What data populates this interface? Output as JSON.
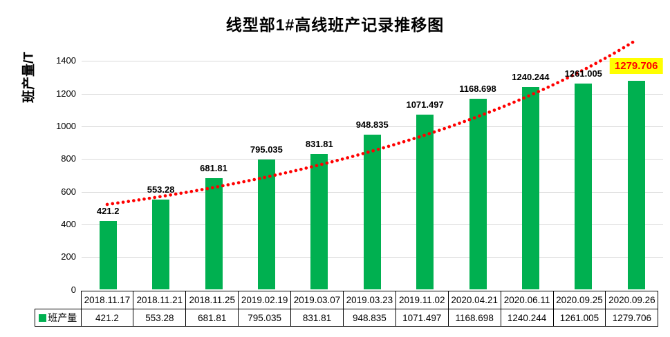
{
  "title": "线型部1#高线班产记录推移图",
  "y_axis": {
    "label": "班产量/T",
    "ticks": [
      0,
      200,
      400,
      600,
      800,
      1000,
      1200,
      1400
    ]
  },
  "legend": {
    "series_label": "班产量"
  },
  "colors": {
    "bar": "#00B050",
    "trend": "#FF0000",
    "gridline": "#D9D9D9",
    "highlight_bg": "#FFFF00",
    "highlight_text": "#FF0000",
    "label_text": "#000000"
  },
  "chart_data": {
    "type": "bar",
    "title": "线型部1#高线班产记录推移图",
    "ylabel": "班产量/T",
    "ylim": [
      0,
      1500
    ],
    "grid": true,
    "legend_position": "table-left",
    "categories": [
      "2018.11.17",
      "2018.11.21",
      "2018.11.25",
      "2019.02.19",
      "2019.03.07",
      "2019.03.23",
      "2019.11.02",
      "2020.04.21",
      "2020.06.11",
      "2020.09.25",
      "2020.09.26"
    ],
    "series": [
      {
        "name": "班产量",
        "values": [
          421.2,
          553.28,
          681.81,
          795.035,
          831.81,
          948.835,
          1071.497,
          1168.698,
          1240.244,
          1261.005,
          1279.706
        ]
      }
    ],
    "value_labels": [
      "421.2",
      "553.28",
      "681.81",
      "795.035",
      "831.81",
      "948.835",
      "1071.497",
      "1168.698",
      "1240.244",
      "1261.005",
      "1279.706"
    ],
    "highlight_index": 10,
    "trendline": {
      "style": "dotted",
      "color": "#FF0000",
      "shape": "exponential-rising"
    },
    "data_table": {
      "row_header": "班产量",
      "columns": [
        "2018.11.17",
        "2018.11.21",
        "2018.11.25",
        "2019.02.19",
        "2019.03.07",
        "2019.03.23",
        "2019.11.02",
        "2020.04.21",
        "2020.06.11",
        "2020.09.25",
        "2020.09.26"
      ],
      "values": [
        "421.2",
        "553.28",
        "681.81",
        "795.035",
        "831.81",
        "948.835",
        "1071.497",
        "1168.698",
        "1240.244",
        "1261.005",
        "1279.706"
      ]
    }
  }
}
